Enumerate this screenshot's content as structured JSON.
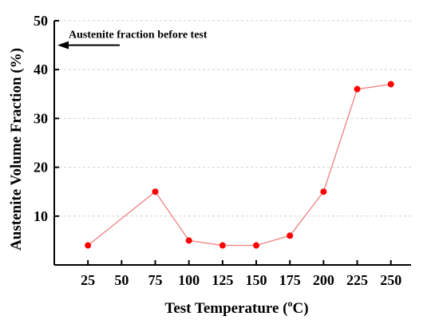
{
  "chart_data": {
    "type": "line",
    "xlabel": "Test Temperature (",
    "xlabel_sup": "o",
    "xlabel_tail": "C)",
    "ylabel": "Austenite Volume Fraction (%)",
    "x_ticks": [
      25,
      50,
      75,
      100,
      125,
      150,
      175,
      200,
      225,
      250
    ],
    "y_ticks": [
      10,
      20,
      30,
      40,
      50
    ],
    "xlim": [
      0,
      265
    ],
    "ylim": [
      0,
      50
    ],
    "grid": "horizontal-dashed",
    "series": [
      {
        "x": [
          25,
          75,
          100,
          125,
          150,
          175,
          200,
          225,
          250
        ],
        "y": [
          4,
          15,
          5,
          4,
          4,
          6,
          15,
          36,
          37
        ]
      }
    ],
    "annotation": {
      "text": "Austenite fraction before test",
      "y": 45
    },
    "colors": {
      "marker": "#ff0000",
      "line": "#f08080",
      "grid": "#d0d0d0",
      "axis": "#000000"
    }
  }
}
